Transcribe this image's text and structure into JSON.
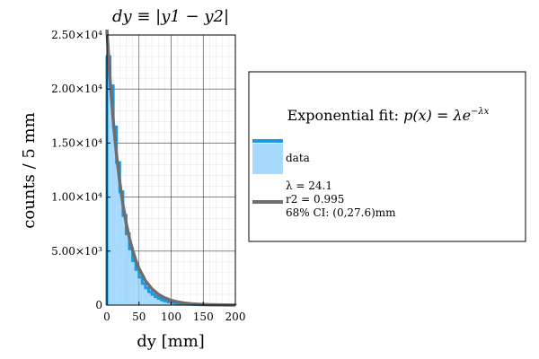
{
  "chart_data": {
    "type": "bar",
    "title": "dy ≡ |y1 − y2|",
    "xlabel": "dy [mm]",
    "ylabel": "counts  / 5 mm",
    "xlim": [
      0,
      200
    ],
    "ylim": [
      0,
      25000
    ],
    "xticks": [
      0,
      50,
      100,
      150,
      200
    ],
    "xtick_labels": [
      "0",
      "50",
      "100",
      "150",
      "200"
    ],
    "yticks": [
      0,
      5000,
      10000,
      15000,
      20000,
      25000
    ],
    "ytick_labels": [
      "0",
      "5.00×10³",
      "1.00×10⁴",
      "1.50×10⁴",
      "2.00×10⁴",
      "2.50×10⁴"
    ],
    "grid": true,
    "bin_width": 5,
    "histogram": {
      "name": "data",
      "color": "#1a98e4",
      "fill": "#a6d9fb",
      "bin_edges": [
        0,
        5,
        10,
        15,
        20,
        25,
        30,
        35,
        40,
        45,
        50,
        55,
        60,
        65,
        70,
        75,
        80,
        85,
        90,
        95,
        100,
        105,
        110,
        115,
        120,
        125,
        130,
        135,
        140,
        145,
        150,
        155,
        160,
        165,
        170,
        175,
        180,
        185,
        190,
        195,
        200
      ],
      "counts": [
        23000,
        20300,
        16500,
        13200,
        10500,
        8300,
        6600,
        5200,
        4100,
        3300,
        2600,
        2000,
        1600,
        1250,
        1000,
        780,
        620,
        480,
        380,
        300,
        240,
        190,
        150,
        120,
        95,
        75,
        60,
        48,
        38,
        30,
        24,
        19,
        15,
        12,
        10,
        8,
        6,
        5,
        4,
        3
      ]
    },
    "fit": {
      "name": "Exponential fit",
      "color": "#6e6e6e",
      "formula": "p(x) = λe^{−λx}",
      "x": [
        0,
        5,
        10,
        15,
        20,
        25,
        30,
        35,
        40,
        45,
        50,
        60,
        70,
        80,
        90,
        100,
        110,
        120,
        130,
        140,
        150,
        160,
        170,
        180,
        190,
        200
      ],
      "y": [
        25500,
        20800,
        17000,
        13900,
        11400,
        9300,
        7600,
        6200,
        5100,
        4150,
        3400,
        2260,
        1510,
        1010,
        675,
        450,
        300,
        200,
        134,
        89,
        60,
        40,
        27,
        18,
        12,
        8
      ]
    },
    "legend": {
      "placement": "right",
      "title": "Exponential fit: p(x) = λe^(−λx)",
      "title_parts": {
        "text": "Exponential fit: ",
        "formula_main": "p(x) = λe",
        "formula_sup": "−λx"
      },
      "data_label": "data",
      "fit_lines": [
        "λ = 24.1",
        "r2 = 0.995",
        "68% CI: (0,27.6)mm"
      ]
    }
  }
}
